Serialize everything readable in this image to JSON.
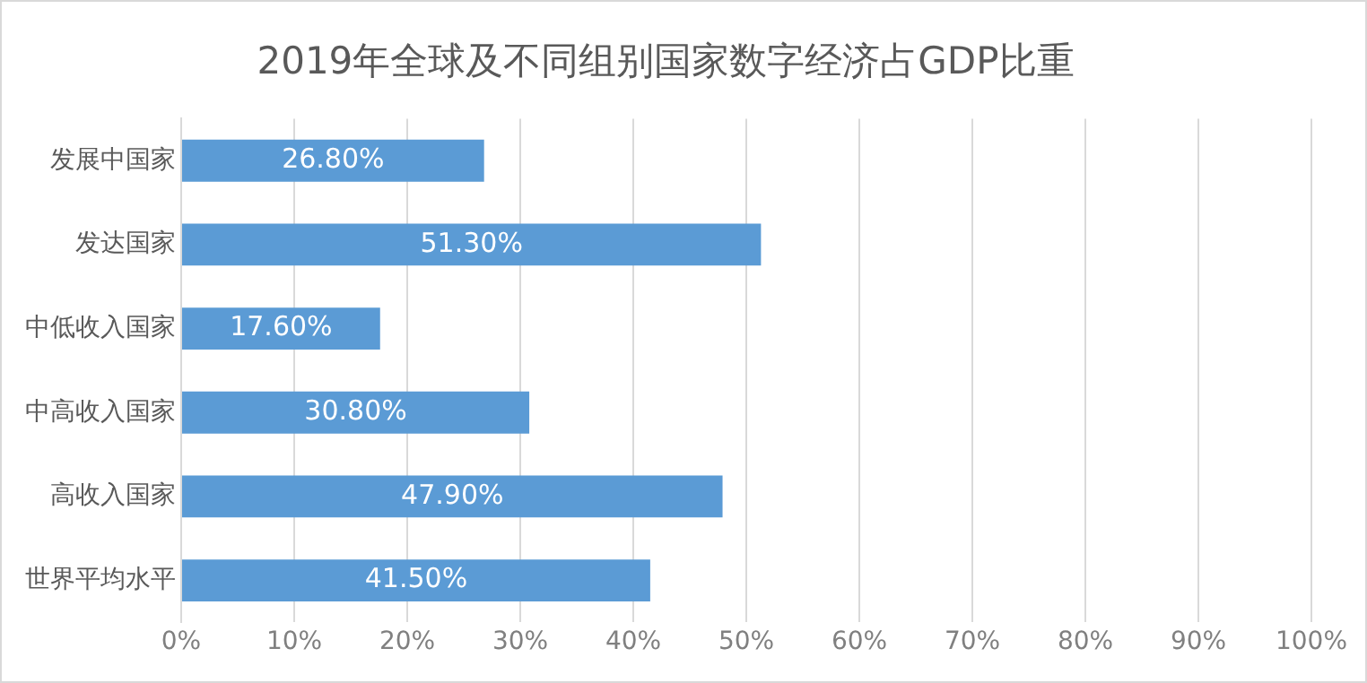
{
  "chart_data": {
    "type": "bar",
    "orientation": "horizontal",
    "title": "2019年全球及不同组别国家数字经济占GDP比重",
    "categories": [
      "发展中国家",
      "发达国家",
      "中低收入国家",
      "中高收入国家",
      "高收入国家",
      "世界平均水平"
    ],
    "values": [
      26.8,
      51.3,
      17.6,
      30.8,
      47.9,
      41.5
    ],
    "value_labels": [
      "26.80%",
      "51.30%",
      "17.60%",
      "30.80%",
      "47.90%",
      "41.50%"
    ],
    "color": "#5b9bd5",
    "xlim": [
      0,
      100
    ],
    "xticks": [
      {
        "value": 0,
        "label": "0%"
      },
      {
        "value": 10,
        "label": "10%"
      },
      {
        "value": 20,
        "label": "20%"
      },
      {
        "value": 30,
        "label": "30%"
      },
      {
        "value": 40,
        "label": "40%"
      },
      {
        "value": 50,
        "label": "50%"
      },
      {
        "value": 60,
        "label": "60%"
      },
      {
        "value": 70,
        "label": "70%"
      },
      {
        "value": 80,
        "label": "80%"
      },
      {
        "value": 90,
        "label": "90%"
      },
      {
        "value": 100,
        "label": "100%"
      }
    ],
    "grid": "x",
    "legend": false
  }
}
